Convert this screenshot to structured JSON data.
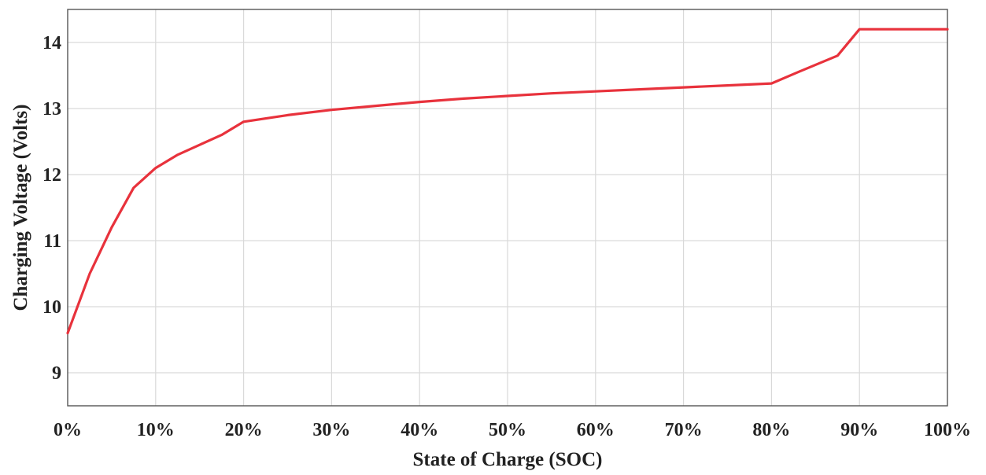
{
  "chart_data": {
    "type": "line",
    "title": "",
    "xlabel": "State of Charge (SOC)",
    "ylabel": "Charging Voltage (Volts)",
    "xlim": [
      0,
      100
    ],
    "ylim": [
      8.5,
      14.5
    ],
    "x_ticks": [
      0,
      10,
      20,
      30,
      40,
      50,
      60,
      70,
      80,
      90,
      100
    ],
    "x_tick_labels": [
      "0%",
      "10%",
      "20%",
      "30%",
      "40%",
      "50%",
      "60%",
      "70%",
      "80%",
      "90%",
      "100%"
    ],
    "y_ticks": [
      9,
      10,
      11,
      12,
      13,
      14
    ],
    "y_tick_labels": [
      "9",
      "10",
      "11",
      "12",
      "13",
      "14"
    ],
    "grid": true,
    "legend": "none",
    "series": [
      {
        "color": "#e8323c",
        "x": [
          0,
          2.5,
          5,
          7.5,
          10,
          12.5,
          15,
          17.5,
          20,
          25,
          30,
          35,
          40,
          45,
          50,
          55,
          60,
          65,
          70,
          75,
          80,
          83,
          87.5,
          90,
          95,
          100
        ],
        "y": [
          9.6,
          10.5,
          11.2,
          11.8,
          12.1,
          12.3,
          12.45,
          12.6,
          12.8,
          12.9,
          12.98,
          13.04,
          13.1,
          13.15,
          13.19,
          13.23,
          13.26,
          13.29,
          13.32,
          13.35,
          13.38,
          13.55,
          13.8,
          14.2,
          14.2,
          14.2
        ]
      }
    ]
  }
}
